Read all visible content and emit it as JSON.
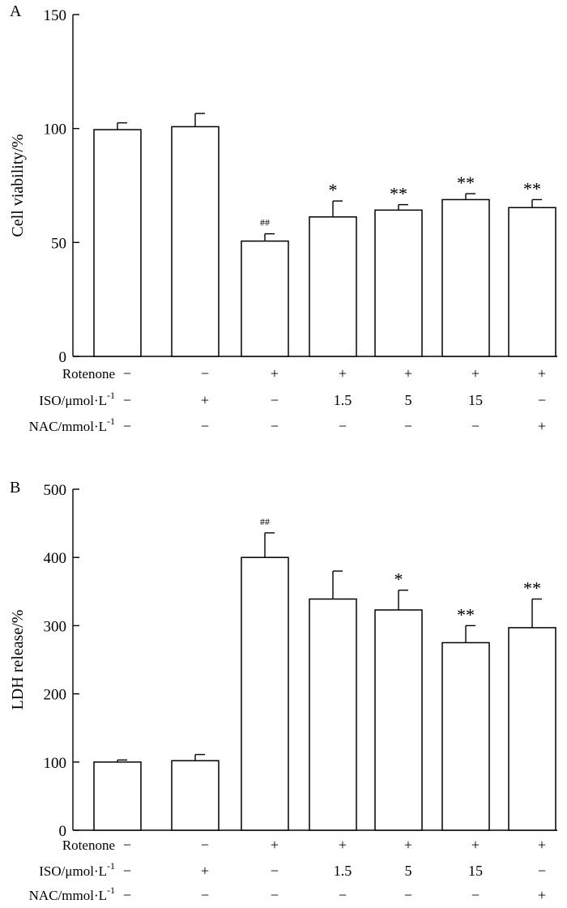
{
  "chart_data": [
    {
      "type": "bar",
      "panel": "A",
      "ylabel": "Cell viability/%",
      "ylim": [
        0,
        150
      ],
      "yticks": [
        0,
        50,
        100,
        150
      ],
      "values": [
        99.5,
        100.8,
        50.6,
        61.2,
        64.2,
        68.8,
        65.3
      ],
      "errors": [
        3.0,
        5.8,
        3.2,
        7.0,
        2.4,
        2.6,
        3.5
      ],
      "annotations": [
        "",
        "",
        "##",
        "*",
        "**",
        "**",
        "**"
      ]
    },
    {
      "type": "bar",
      "panel": "B",
      "ylabel": "LDH release/%",
      "ylim": [
        0,
        500
      ],
      "yticks": [
        0,
        100,
        200,
        300,
        400,
        500
      ],
      "values": [
        100,
        102,
        400,
        339,
        323,
        275,
        297
      ],
      "errors": [
        3,
        9,
        36,
        41,
        29,
        25,
        42
      ],
      "annotations": [
        "",
        "",
        "##",
        "",
        "*",
        "**",
        "**"
      ]
    }
  ],
  "conditions": [
    {
      "label": "Rotenone",
      "values": [
        "−",
        "−",
        "+",
        "+",
        "+",
        "+",
        "+"
      ]
    },
    {
      "label": "ISO/μmol·L",
      "superscript": "-1",
      "values": [
        "−",
        "+",
        "−",
        "1.5",
        "5",
        "15",
        "−"
      ]
    },
    {
      "label": "NAC/mmol·L",
      "superscript": "-1",
      "values": [
        "−",
        "−",
        "−",
        "−",
        "−",
        "−",
        "+"
      ]
    }
  ]
}
